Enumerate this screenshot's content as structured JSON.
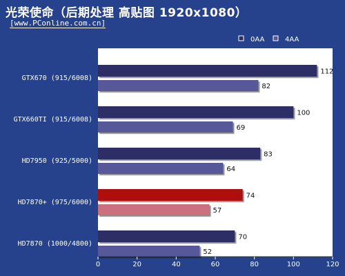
{
  "header": {
    "title": "光荣使命（后期处理 高贴图 1920x1080）",
    "subtitle": "[www.PConline.com.cn]"
  },
  "colors": {
    "background": "#26428c",
    "plot_area": "#ffffff",
    "series_0AA": "#2d2d66",
    "series_4AA": "#56589a",
    "highlight_0AA": "#b00808",
    "highlight_4AA": "#cc6f7e"
  },
  "chart_data": {
    "type": "bar",
    "orientation": "horizontal",
    "categories": [
      "GTX670 (915/6008)",
      "GTX660TI (915/6008)",
      "HD7950 (925/5000)",
      "HD7870+ (975/6000)",
      "HD7870 (1000/4800)"
    ],
    "series": [
      {
        "name": "0AA",
        "values": [
          112,
          100,
          83,
          74,
          70
        ]
      },
      {
        "name": "4AA",
        "values": [
          82,
          69,
          64,
          57,
          52
        ]
      }
    ],
    "highlight_category_index": 3,
    "xlim": [
      0,
      120
    ],
    "x_ticks": [
      0,
      20,
      40,
      60,
      80,
      100,
      120
    ],
    "grid": false,
    "legend_position": "top-right"
  }
}
